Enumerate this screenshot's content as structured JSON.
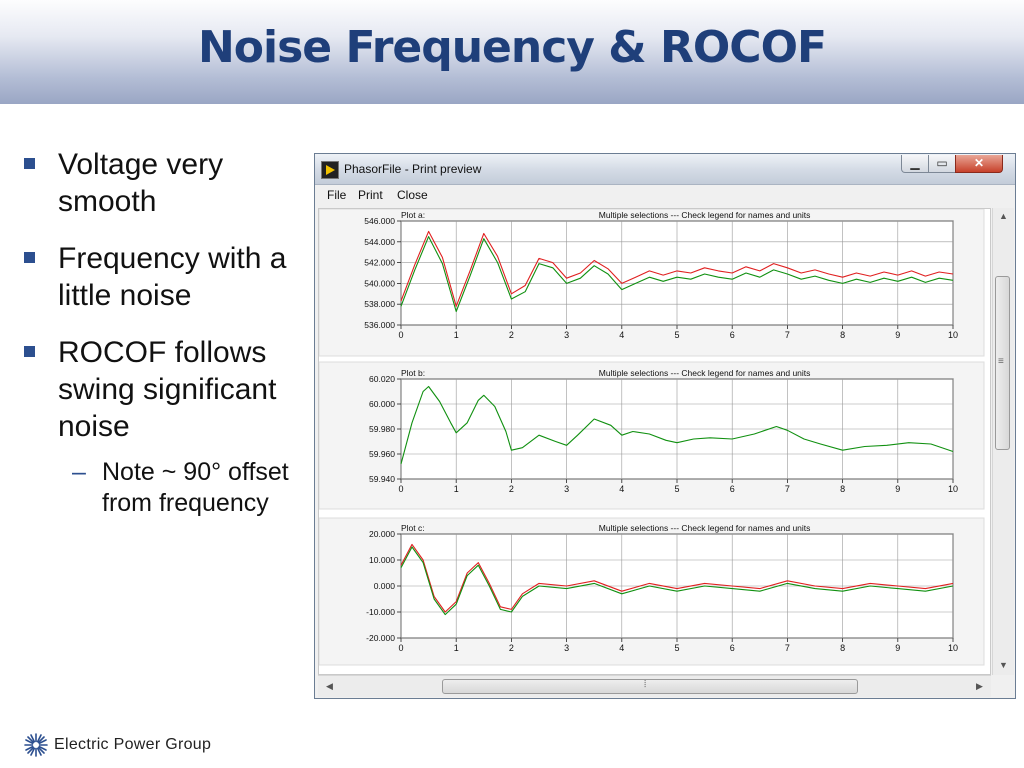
{
  "slide": {
    "title": "Noise Frequency & ROCOF",
    "bullets": [
      "Voltage very smooth",
      "Frequency with a little noise",
      "ROCOF follows swing significant noise"
    ],
    "sub_bullet": "Note ~ 90° offset from frequency",
    "footer_logo_icon": "starburst-icon",
    "footer_text": "Electric Power Group"
  },
  "window": {
    "title": "PhasorFile - Print preview",
    "icon": "labview-app-icon",
    "controls": [
      "minimize-icon",
      "maximize-icon",
      "close-icon"
    ],
    "menu": [
      "File",
      "Print",
      "Close"
    ]
  },
  "chart_data": [
    {
      "type": "line",
      "title": "Multiple selections --- Check legend for names and units",
      "panel_label": "Plot a:",
      "xlim": [
        0,
        10
      ],
      "ylim": [
        536,
        546
      ],
      "x_ticks": [
        "0",
        "1",
        "2",
        "3",
        "4",
        "5",
        "6",
        "7",
        "8",
        "9",
        "10"
      ],
      "y_ticks": [
        "546.000",
        "544.000",
        "542.000",
        "540.000",
        "538.000",
        "536.000"
      ],
      "series": [
        {
          "color": "#e02020",
          "x": [
            0,
            0.25,
            0.5,
            0.75,
            1.0,
            1.25,
            1.5,
            1.75,
            2.0,
            2.25,
            2.5,
            2.75,
            3.0,
            3.25,
            3.5,
            3.75,
            4.0,
            4.25,
            4.5,
            4.75,
            5.0,
            5.25,
            5.5,
            5.75,
            6.0,
            6.25,
            6.5,
            6.75,
            7.0,
            7.25,
            7.5,
            7.75,
            8.0,
            8.25,
            8.5,
            8.75,
            9.0,
            9.25,
            9.5,
            9.75,
            10.0
          ],
          "y": [
            538.3,
            541.8,
            545.0,
            542.5,
            537.8,
            541.2,
            544.8,
            542.6,
            539.0,
            539.8,
            542.4,
            542.0,
            540.5,
            541.0,
            542.2,
            541.4,
            540.0,
            540.6,
            541.2,
            540.8,
            541.2,
            541.0,
            541.5,
            541.2,
            541.0,
            541.6,
            541.2,
            541.9,
            541.5,
            541.0,
            541.3,
            540.9,
            540.6,
            541.0,
            540.7,
            541.1,
            540.8,
            541.2,
            540.7,
            541.1,
            540.9
          ]
        },
        {
          "color": "#109010",
          "x": [
            0,
            0.25,
            0.5,
            0.75,
            1.0,
            1.25,
            1.5,
            1.75,
            2.0,
            2.25,
            2.5,
            2.75,
            3.0,
            3.25,
            3.5,
            3.75,
            4.0,
            4.25,
            4.5,
            4.75,
            5.0,
            5.25,
            5.5,
            5.75,
            6.0,
            6.25,
            6.5,
            6.75,
            7.0,
            7.25,
            7.5,
            7.75,
            8.0,
            8.25,
            8.5,
            8.75,
            9.0,
            9.25,
            9.5,
            9.75,
            10.0
          ],
          "y": [
            537.8,
            541.3,
            544.5,
            541.9,
            537.3,
            540.7,
            544.3,
            542.0,
            538.5,
            539.2,
            541.9,
            541.5,
            540.0,
            540.5,
            541.7,
            540.9,
            539.4,
            540.0,
            540.6,
            540.2,
            540.6,
            540.4,
            540.9,
            540.6,
            540.4,
            541.0,
            540.6,
            541.3,
            540.9,
            540.4,
            540.7,
            540.3,
            540.0,
            540.4,
            540.1,
            540.5,
            540.2,
            540.6,
            540.1,
            540.5,
            540.3
          ]
        }
      ]
    },
    {
      "type": "line",
      "title": "Multiple selections --- Check legend for names and units",
      "panel_label": "Plot b:",
      "xlim": [
        0,
        10
      ],
      "ylim": [
        59.94,
        60.02
      ],
      "x_ticks": [
        "0",
        "1",
        "2",
        "3",
        "4",
        "5",
        "6",
        "7",
        "8",
        "9",
        "10"
      ],
      "y_ticks": [
        "60.020",
        "60.000",
        "59.980",
        "59.960",
        "59.940"
      ],
      "series": [
        {
          "color": "#109010",
          "x": [
            0,
            0.2,
            0.4,
            0.5,
            0.7,
            0.9,
            1.0,
            1.2,
            1.4,
            1.5,
            1.7,
            1.9,
            2.0,
            2.2,
            2.5,
            2.8,
            3.0,
            3.2,
            3.5,
            3.8,
            4.0,
            4.2,
            4.5,
            4.8,
            5.0,
            5.3,
            5.6,
            6.0,
            6.4,
            6.8,
            7.0,
            7.3,
            7.6,
            8.0,
            8.4,
            8.8,
            9.2,
            9.6,
            10.0
          ],
          "y": [
            59.952,
            59.985,
            60.01,
            60.014,
            60.002,
            59.985,
            59.977,
            59.985,
            60.003,
            60.007,
            59.998,
            59.978,
            59.963,
            59.965,
            59.975,
            59.97,
            59.967,
            59.975,
            59.988,
            59.983,
            59.975,
            59.978,
            59.976,
            59.971,
            59.969,
            59.972,
            59.973,
            59.972,
            59.976,
            59.982,
            59.979,
            59.972,
            59.968,
            59.963,
            59.966,
            59.967,
            59.969,
            59.968,
            59.962
          ]
        }
      ]
    },
    {
      "type": "line",
      "title": "Multiple selections --- Check legend for names and units",
      "panel_label": "Plot c:",
      "xlim": [
        0,
        10
      ],
      "ylim": [
        -20,
        20
      ],
      "x_ticks": [
        "0",
        "1",
        "2",
        "3",
        "4",
        "5",
        "6",
        "7",
        "8",
        "9",
        "10"
      ],
      "y_ticks": [
        "20.000",
        "10.000",
        "0.000",
        "-10.000",
        "-20.000"
      ],
      "series": [
        {
          "color": "#e02020",
          "x": [
            0,
            0.2,
            0.4,
            0.6,
            0.8,
            1.0,
            1.2,
            1.4,
            1.6,
            1.8,
            2.0,
            2.2,
            2.5,
            3.0,
            3.5,
            4.0,
            4.5,
            5.0,
            5.5,
            6.0,
            6.5,
            7.0,
            7.5,
            8.0,
            8.5,
            9.0,
            9.5,
            10.0
          ],
          "y": [
            8,
            16,
            10,
            -4,
            -10,
            -6,
            5,
            9,
            1,
            -8,
            -9,
            -3,
            1,
            0,
            2,
            -2,
            1,
            -1,
            1,
            0,
            -1,
            2,
            0,
            -1,
            1,
            0,
            -1,
            1
          ]
        },
        {
          "color": "#109010",
          "x": [
            0,
            0.2,
            0.4,
            0.6,
            0.8,
            1.0,
            1.2,
            1.4,
            1.6,
            1.8,
            2.0,
            2.2,
            2.5,
            3.0,
            3.5,
            4.0,
            4.5,
            5.0,
            5.5,
            6.0,
            6.5,
            7.0,
            7.5,
            8.0,
            8.5,
            9.0,
            9.5,
            10.0
          ],
          "y": [
            7,
            15,
            9,
            -5,
            -11,
            -7,
            4,
            8,
            0,
            -9,
            -10,
            -4,
            0,
            -1,
            1,
            -3,
            0,
            -2,
            0,
            -1,
            -2,
            1,
            -1,
            -2,
            0,
            -1,
            -2,
            0
          ]
        }
      ]
    }
  ]
}
